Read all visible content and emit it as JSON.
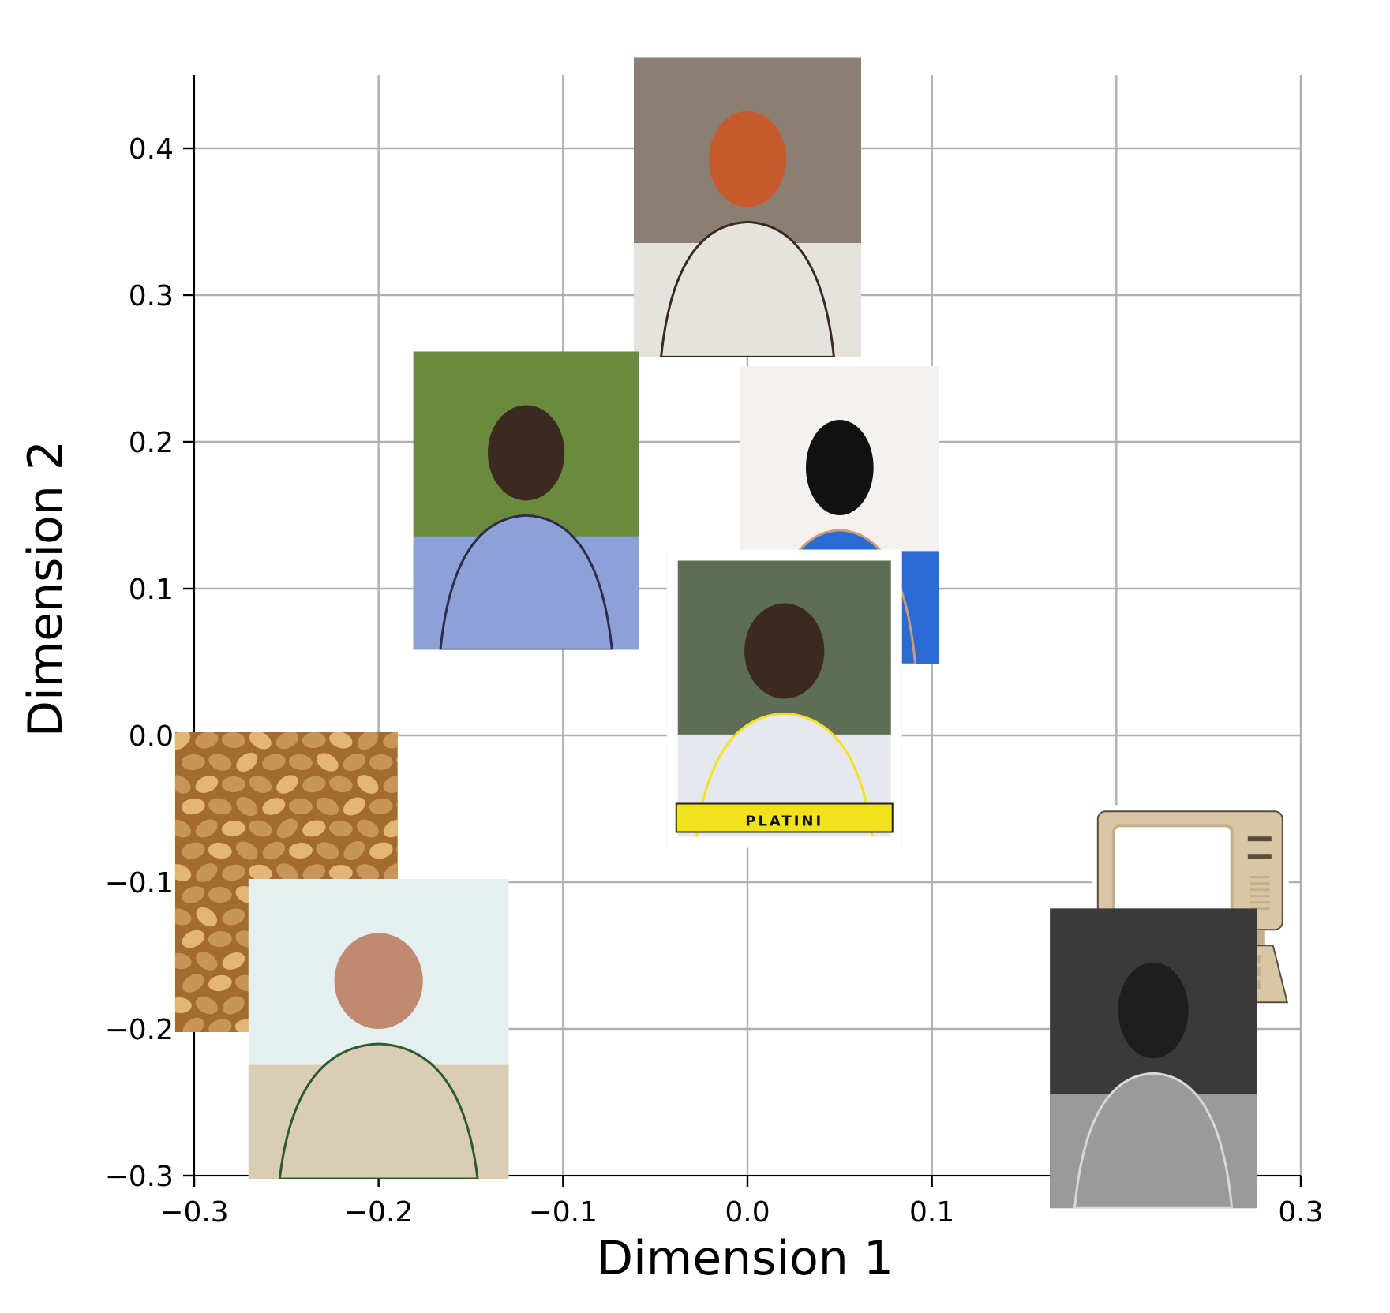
{
  "chart_data": {
    "type": "scatter",
    "title": "",
    "xlabel": "Dimension 1",
    "ylabel": "Dimension 2",
    "xlim": [
      -0.3,
      0.3
    ],
    "ylim": [
      -0.3,
      0.45
    ],
    "xticks": [
      "−0.3",
      "−0.2",
      "−0.1",
      "0.0",
      "0.1",
      "0.3"
    ],
    "xtick_values": [
      -0.3,
      -0.2,
      -0.1,
      0.0,
      0.1,
      0.3
    ],
    "yticks": [
      "−0.3",
      "−0.2",
      "−0.1",
      "0.0",
      "0.1",
      "0.2",
      "0.3",
      "0.4"
    ],
    "ytick_values": [
      -0.3,
      -0.2,
      -0.1,
      0.0,
      0.1,
      0.2,
      0.3,
      0.4
    ],
    "grid": true,
    "marker": "image thumbnail",
    "points": [
      {
        "icon": "baseball-player-photo",
        "x": 0.0,
        "y": 0.36,
        "colors": [
          "#8a7f72",
          "#e6e3de",
          "#3a2a22",
          "#c65a2c"
        ]
      },
      {
        "icon": "rugby-player-photo",
        "x": -0.12,
        "y": 0.16,
        "colors": [
          "#6b8a3e",
          "#8ea0d8",
          "#2b2d4a",
          "#3b2a22"
        ]
      },
      {
        "icon": "bald-man-blue-jacket-photo",
        "x": 0.05,
        "y": 0.15,
        "colors": [
          "#f4f1ee",
          "#2a6ad2",
          "#c99a7c",
          "#111111"
        ]
      },
      {
        "icon": "football-sticker-photo",
        "x": 0.02,
        "y": 0.025,
        "colors": [
          "#5e6e55",
          "#e6e8ee",
          "#f2e21b",
          "#3c2a20"
        ],
        "caption": "PLATINI"
      },
      {
        "icon": "wheat-grains-photo",
        "x": -0.25,
        "y": -0.1,
        "colors": [
          "#c79656",
          "#a36b2e",
          "#e3b676"
        ]
      },
      {
        "icon": "man-light-blazer-photo",
        "x": -0.2,
        "y": -0.2,
        "colors": [
          "#e4f0ef",
          "#d9cdb6",
          "#2f5a2a",
          "#c08a72"
        ]
      },
      {
        "icon": "retro-computer-illustration",
        "x": 0.24,
        "y": -0.12,
        "colors": [
          "#d8c7a5",
          "#c3b08a",
          "#ffffff",
          "#5a4c38"
        ]
      },
      {
        "icon": "woman-black-white-photo",
        "x": 0.22,
        "y": -0.22,
        "colors": [
          "#3a3a3a",
          "#9a9a9a",
          "#d8d8d8",
          "#1e1e1e"
        ]
      }
    ]
  }
}
